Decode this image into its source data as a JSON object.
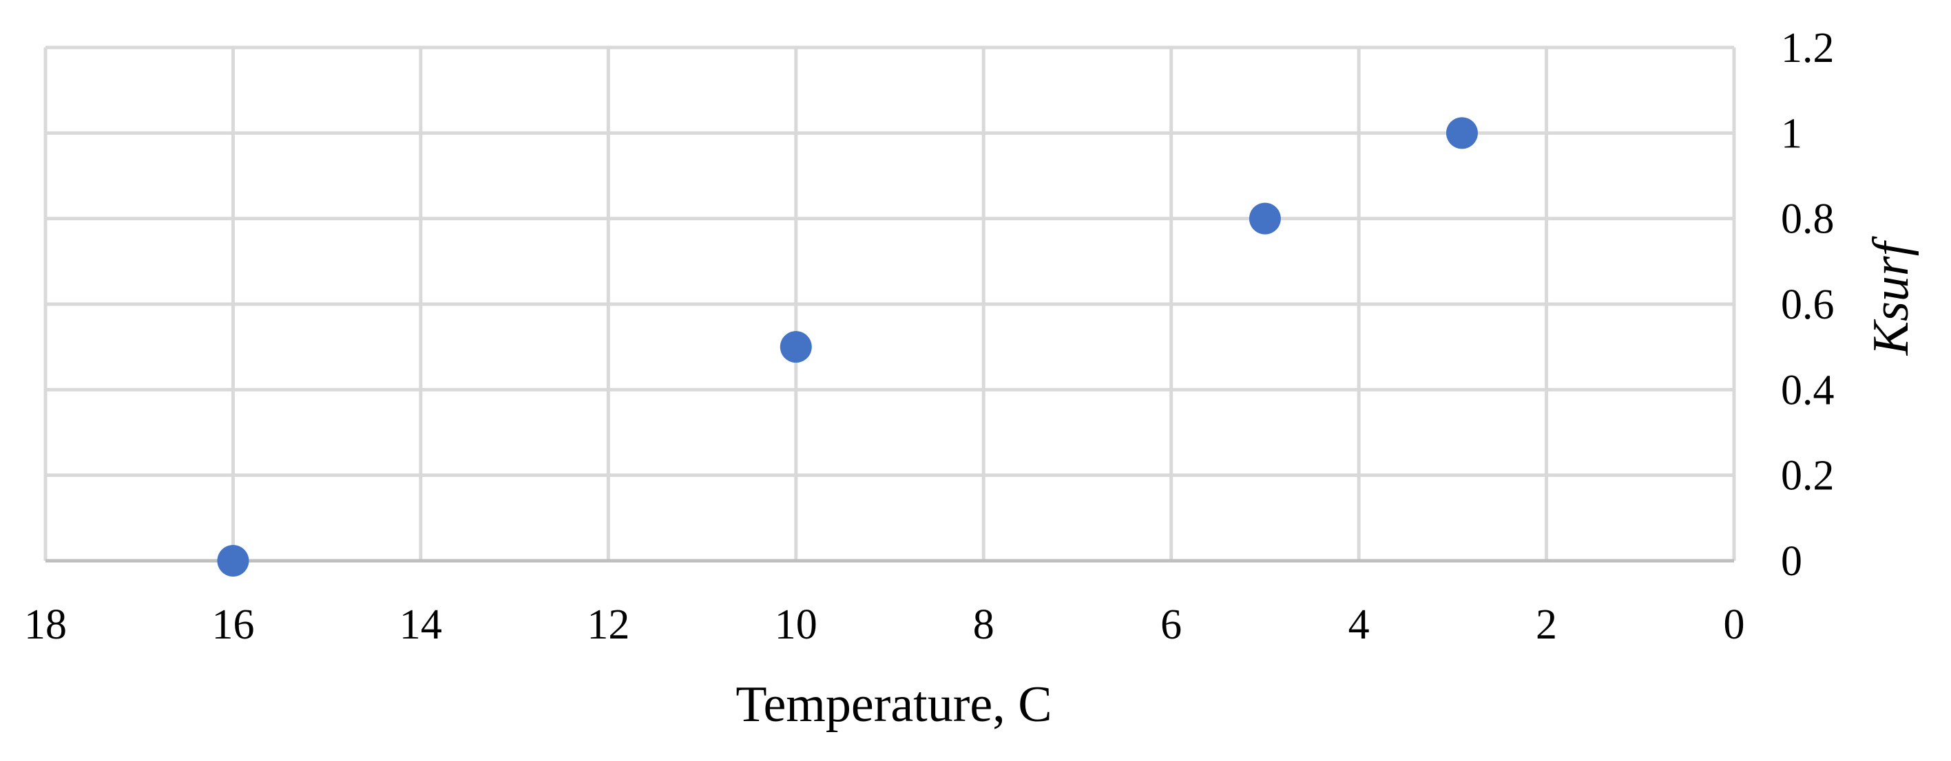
{
  "chart_data": {
    "type": "scatter",
    "xlabel": "Temperature, C",
    "ylabel": "Ksurf",
    "xlim": [
      0,
      18
    ],
    "ylim": [
      0,
      1.2
    ],
    "x_reversed": true,
    "y_axis_position": "right",
    "grid": true,
    "x_ticks": [
      18,
      16,
      14,
      12,
      10,
      8,
      6,
      4,
      2,
      0
    ],
    "y_ticks": [
      0,
      0.2,
      0.4,
      0.6,
      0.8,
      1,
      1.2
    ],
    "series": [
      {
        "color": "#4472c4",
        "points": [
          {
            "x": 16,
            "y": 0
          },
          {
            "x": 10,
            "y": 0.5
          },
          {
            "x": 5,
            "y": 0.8
          },
          {
            "x": 2.9,
            "y": 1
          }
        ]
      }
    ]
  }
}
